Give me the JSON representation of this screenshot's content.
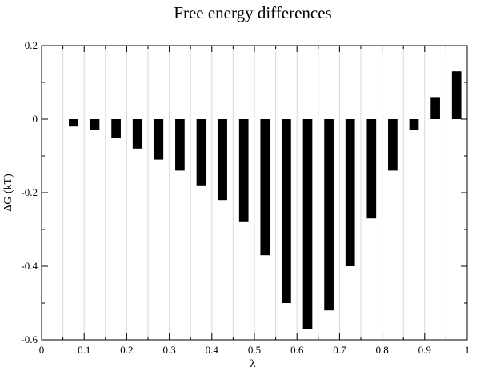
{
  "chart_data": {
    "type": "bar",
    "title": "Free energy differences",
    "xlabel": "λ",
    "ylabel": "ΔG (kT)",
    "xlim": [
      0,
      1
    ],
    "ylim": [
      -0.6,
      0.2
    ],
    "grid": "vertical",
    "bar_color": "#000000",
    "grid_color": "#d9d9d9",
    "x_ticks": [
      {
        "value": 0,
        "label": "0"
      },
      {
        "value": 0.1,
        "label": "0.1"
      },
      {
        "value": 0.2,
        "label": "0.2"
      },
      {
        "value": 0.3,
        "label": "0.3"
      },
      {
        "value": 0.4,
        "label": "0.4"
      },
      {
        "value": 0.5,
        "label": "0.5"
      },
      {
        "value": 0.6,
        "label": "0.6"
      },
      {
        "value": 0.7,
        "label": "0.7"
      },
      {
        "value": 0.8,
        "label": "0.8"
      },
      {
        "value": 0.9,
        "label": "0.9"
      },
      {
        "value": 1,
        "label": "1"
      }
    ],
    "y_ticks": [
      {
        "value": 0.2,
        "label": "0.2"
      },
      {
        "value": 0,
        "label": "0"
      },
      {
        "value": -0.2,
        "label": "-0.2"
      },
      {
        "value": -0.4,
        "label": "-0.4"
      },
      {
        "value": -0.6,
        "label": "-0.6"
      }
    ],
    "x": [
      0.075,
      0.125,
      0.175,
      0.225,
      0.275,
      0.325,
      0.375,
      0.425,
      0.475,
      0.525,
      0.575,
      0.625,
      0.675,
      0.725,
      0.775,
      0.825,
      0.875,
      0.925,
      0.975
    ],
    "values": [
      -0.02,
      -0.03,
      -0.05,
      -0.08,
      -0.11,
      -0.14,
      -0.18,
      -0.22,
      -0.28,
      -0.37,
      -0.5,
      -0.57,
      -0.52,
      -0.4,
      -0.27,
      -0.14,
      -0.03,
      0.06,
      0.13
    ]
  }
}
